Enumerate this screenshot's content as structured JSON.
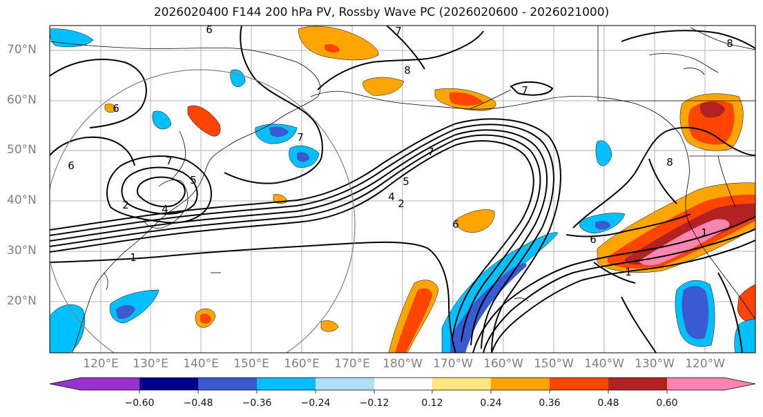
{
  "title": "2026020400 F144 200 hPa PV, Rossby Wave PC (2026020600 - 2026021000)",
  "lat_labels": [
    "70°N",
    "60°N",
    "50°N",
    "40°N",
    "30°N",
    "20°N"
  ],
  "lon_labels": [
    "120°E",
    "130°E",
    "140°E",
    "150°E",
    "160°E",
    "170°E",
    "180°W",
    "170°W",
    "160°W",
    "150°W",
    "140°W",
    "130°W",
    "120°W"
  ],
  "colorbar": {
    "ticks": [
      "−0.60",
      "−0.48",
      "−0.36",
      "−0.24",
      "−0.12",
      "0.12",
      "0.24",
      "0.36",
      "0.48",
      "0.60"
    ],
    "colors": {
      "under": "#9932cc",
      "c1": "#00008b",
      "c2": "#3a5bd0",
      "c3": "#00bfff",
      "c4": "#b0e0f8",
      "c5": "#ffffff",
      "c6": "#ffe680",
      "c7": "#ffa500",
      "c8": "#ff4500",
      "c9": "#b22222",
      "over": "#ff85b0"
    }
  },
  "contour_labels": [
    "6",
    "7",
    "8",
    "8",
    "7",
    "7",
    "6",
    "4",
    "5",
    "7",
    "2",
    "1",
    "8",
    "7",
    "5",
    "4",
    "2",
    "6",
    "1",
    "6",
    "1",
    "6"
  ]
}
